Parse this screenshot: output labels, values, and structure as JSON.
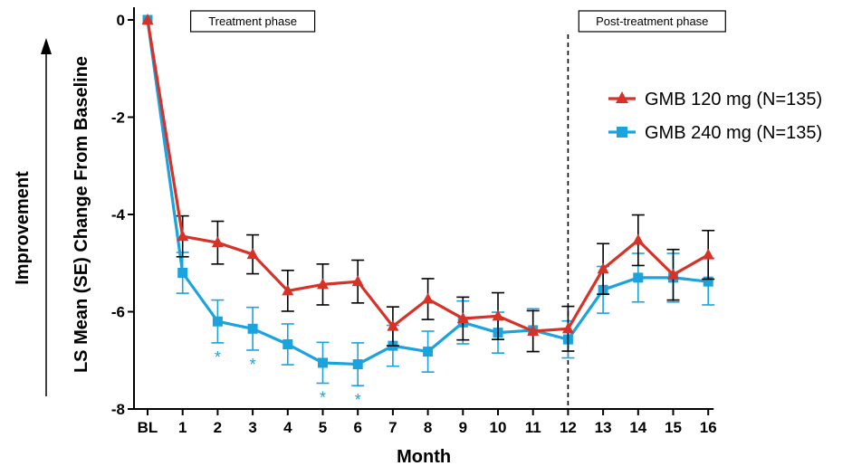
{
  "chart_data": {
    "type": "line",
    "xlabel": "Month",
    "ylabel": "LS Mean (SE) Change From Baseline",
    "side_label": "Improvement",
    "categories": [
      "BL",
      "1",
      "2",
      "3",
      "4",
      "5",
      "6",
      "7",
      "8",
      "9",
      "10",
      "11",
      "12",
      "13",
      "14",
      "15",
      "16"
    ],
    "yticks": [
      0,
      -2,
      -4,
      -6,
      -8
    ],
    "ylim": [
      -8,
      0
    ],
    "phases": [
      {
        "label": "Treatment phase"
      },
      {
        "label": "Post-treatment phase"
      }
    ],
    "phase_divider_at": "12",
    "series": [
      {
        "name": "GMB 120 mg (N=135)",
        "color": "#d73228",
        "marker": "triangle",
        "values": [
          0,
          -4.45,
          -4.58,
          -4.82,
          -5.57,
          -5.44,
          -5.38,
          -6.3,
          -5.74,
          -6.14,
          -6.09,
          -6.4,
          -6.35,
          -5.12,
          -4.53,
          -5.24,
          -4.83
        ],
        "se": [
          0,
          0.42,
          0.44,
          0.4,
          0.42,
          0.42,
          0.44,
          0.4,
          0.42,
          0.44,
          0.48,
          0.42,
          0.46,
          0.52,
          0.52,
          0.52,
          0.5
        ]
      },
      {
        "name": "GMB 240 mg (N=135)",
        "color": "#1aa3df",
        "marker": "square",
        "values": [
          0,
          -5.2,
          -6.2,
          -6.35,
          -6.67,
          -7.05,
          -7.08,
          -6.7,
          -6.82,
          -6.22,
          -6.43,
          -6.38,
          -6.57,
          -5.55,
          -5.3,
          -5.3,
          -5.38
        ],
        "se": [
          0,
          0.42,
          0.44,
          0.44,
          0.42,
          0.42,
          0.44,
          0.42,
          0.42,
          0.44,
          0.42,
          0.44,
          0.38,
          0.48,
          0.5,
          0.5,
          0.48
        ]
      }
    ],
    "significance": {
      "symbol": "*",
      "series": "GMB 240 mg (N=135)",
      "at": [
        "2",
        "3",
        "5",
        "6"
      ]
    },
    "legend_position": "right"
  }
}
